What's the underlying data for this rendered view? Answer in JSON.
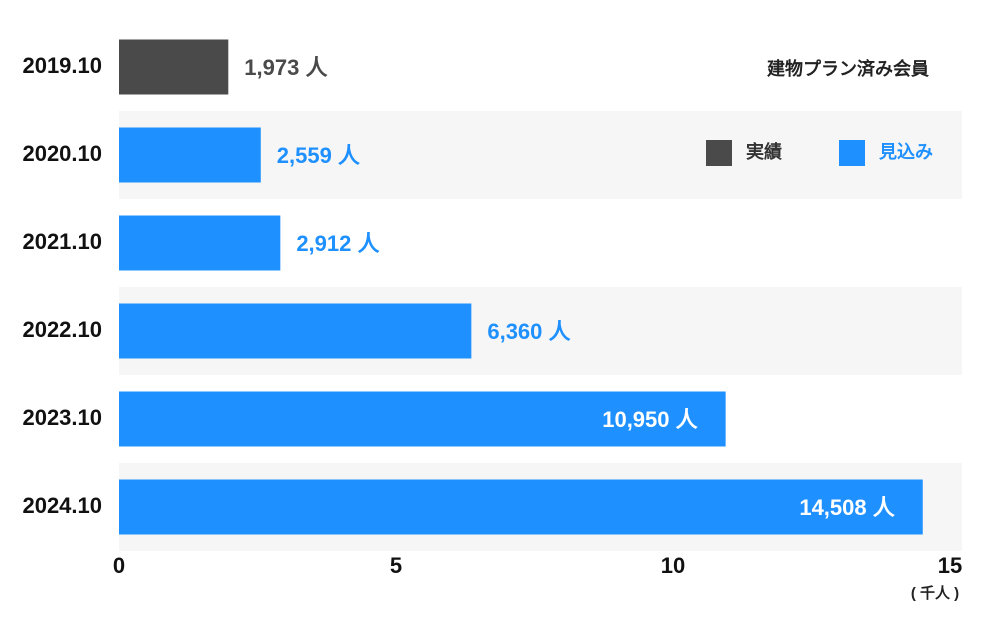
{
  "chart_data": {
    "type": "bar",
    "orientation": "horizontal",
    "title": "建物プラン済み会員",
    "categories": [
      "2019.10",
      "2020.10",
      "2021.10",
      "2022.10",
      "2023.10",
      "2024.10"
    ],
    "series": [
      {
        "name": "実績",
        "color": "#4a4a4a",
        "values": [
          1.973,
          null,
          null,
          null,
          null,
          null
        ],
        "value_labels": [
          "1,973 人",
          null,
          null,
          null,
          null,
          null
        ]
      },
      {
        "name": "見込み",
        "color": "#1e90ff",
        "values": [
          null,
          2.559,
          2.912,
          6.36,
          10.95,
          14.508
        ],
        "value_labels": [
          null,
          "2,559 人",
          "2,912 人",
          "6,360 人",
          "10,950 人",
          "14,508 人"
        ]
      }
    ],
    "xlim": [
      0,
      15
    ],
    "xticks": [
      0,
      5,
      10,
      15
    ],
    "x_axis_label": "( 千人 )",
    "legend": "top-right"
  }
}
